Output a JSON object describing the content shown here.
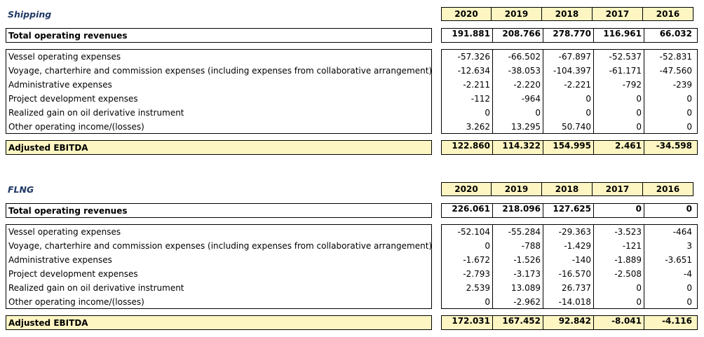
{
  "years": [
    "2020",
    "2019",
    "2018",
    "2017",
    "2016"
  ],
  "sections": [
    {
      "title": "Shipping",
      "total": {
        "label": "Total operating revenues",
        "values": [
          "191.881",
          "208.766",
          "278.770",
          "116.961",
          "66.032"
        ]
      },
      "rows": [
        {
          "label": "Vessel operating expenses",
          "values": [
            "-57.326",
            "-66.502",
            "-67.897",
            "-52.537",
            "-52.831"
          ]
        },
        {
          "label": "Voyage, charterhire and commission expenses (including expenses from collaborative arrangement)",
          "values": [
            "-12.634",
            "-38.053",
            "-104.397",
            "-61.171",
            "-47.560"
          ]
        },
        {
          "label": "Administrative expenses",
          "values": [
            "-2.211",
            "-2.220",
            "-2.221",
            "-792",
            "-239"
          ]
        },
        {
          "label": "Project development expenses",
          "values": [
            "-112",
            "-964",
            "0",
            "0",
            "0"
          ]
        },
        {
          "label": "Realized gain on oil derivative instrument",
          "values": [
            "0",
            "0",
            "0",
            "0",
            "0"
          ]
        },
        {
          "label": "Other operating income/(losses)",
          "values": [
            "3.262",
            "13.295",
            "50.740",
            "0",
            "0"
          ]
        }
      ],
      "ebitda": {
        "label": "Adjusted EBITDA",
        "values": [
          "122.860",
          "114.322",
          "154.995",
          "2.461",
          "-34.598"
        ]
      }
    },
    {
      "title": "FLNG",
      "total": {
        "label": "Total operating revenues",
        "values": [
          "226.061",
          "218.096",
          "127.625",
          "0",
          "0"
        ]
      },
      "rows": [
        {
          "label": "Vessel operating expenses",
          "values": [
            "-52.104",
            "-55.284",
            "-29.363",
            "-3.523",
            "-464"
          ]
        },
        {
          "label": "Voyage, charterhire and commission expenses (including expenses from collaborative arrangement)",
          "values": [
            "0",
            "-788",
            "-1.429",
            "-121",
            "3"
          ]
        },
        {
          "label": "Administrative expenses",
          "values": [
            "-1.672",
            "-1.526",
            "-140",
            "-1.889",
            "-3.651"
          ]
        },
        {
          "label": "Project development expenses",
          "values": [
            "-2.793",
            "-3.173",
            "-16.570",
            "-2.508",
            "-4"
          ]
        },
        {
          "label": "Realized gain on oil derivative instrument",
          "values": [
            "2.539",
            "13.089",
            "26.737",
            "0",
            "0"
          ]
        },
        {
          "label": "Other operating income/(losses)",
          "values": [
            "0",
            "-2.962",
            "-14.018",
            "0",
            "0"
          ]
        }
      ],
      "ebitda": {
        "label": "Adjusted EBITDA",
        "values": [
          "172.031",
          "167.452",
          "92.842",
          "-8.041",
          "-4.116"
        ]
      }
    }
  ]
}
